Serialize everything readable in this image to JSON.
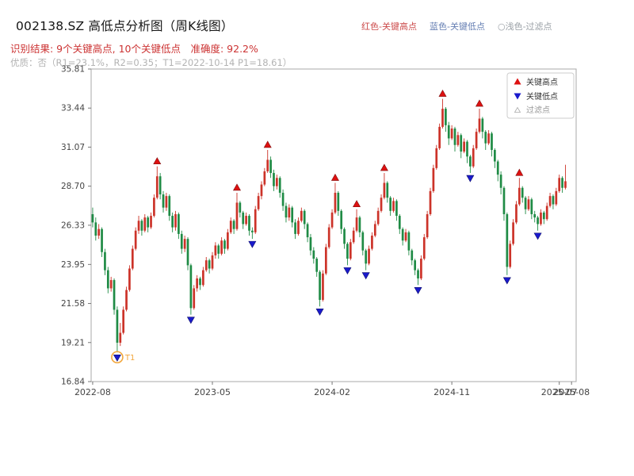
{
  "header": {
    "title": "002138.SZ 高低点分析图（周K线图）",
    "legend_high": "红色-关键高点",
    "legend_low": "蓝色-关键低点",
    "legend_filter": "○浅色-过滤点",
    "result_line": "识别结果: 9个关键高点, 10个关键低点　准确度: 92.2%",
    "quality_line": "优质：否（R1=23.1%，R2=0.35；T1=2022-10-14 P1=18.61）"
  },
  "chart_data": {
    "type": "candlestick",
    "title": "002138.SZ 高低点分析图（周K线图）",
    "xlabel": "",
    "ylabel": "",
    "grid": false,
    "ylim": [
      16.84,
      35.81
    ],
    "y_ticks": [
      16.84,
      19.21,
      21.58,
      23.95,
      26.33,
      28.7,
      31.07,
      33.44,
      35.81
    ],
    "x_ticks": [
      {
        "i": 0,
        "label": "2022-08"
      },
      {
        "i": 39,
        "label": "2023-05"
      },
      {
        "i": 78,
        "label": "2024-02"
      },
      {
        "i": 117,
        "label": "2024-11"
      },
      {
        "i": 152,
        "label": "2025-07"
      },
      {
        "i": 156,
        "label": "2025-08"
      }
    ],
    "slots": 158,
    "stats": {
      "key_high_count": 9,
      "key_low_count": 10,
      "accuracy_pct": 92.2,
      "r1_pct": 23.1,
      "r2": 0.35,
      "t1_date": "2022-10-14",
      "p1": 18.61
    },
    "legend": {
      "high": "关键高点",
      "low": "关键低点",
      "filter": "过滤点"
    },
    "colors": {
      "up": "#cc3329",
      "down": "#1f8b45",
      "marker_high": "#dd1111",
      "marker_high_edge": "#801010",
      "marker_low": "#1a1acc",
      "marker_low_edge": "#10106e",
      "t1": "#f2a63b",
      "frame": "#a8a8a8",
      "tick_text": "#444444",
      "legend_text": "#333333",
      "legend_muted": "#999999"
    },
    "t1": {
      "index": 8,
      "price": 18.61,
      "label": "T1"
    },
    "key_highs": [
      [
        21,
        29.9
      ],
      [
        47,
        28.3
      ],
      [
        57,
        30.9
      ],
      [
        79,
        28.9
      ],
      [
        86,
        27.3
      ],
      [
        95,
        29.5
      ],
      [
        114,
        34.0
      ],
      [
        126,
        33.4
      ],
      [
        139,
        29.2
      ]
    ],
    "key_lows": [
      [
        8,
        18.61
      ],
      [
        32,
        20.9
      ],
      [
        52,
        25.5
      ],
      [
        74,
        21.4
      ],
      [
        83,
        23.9
      ],
      [
        89,
        23.6
      ],
      [
        106,
        22.7
      ],
      [
        123,
        29.5
      ],
      [
        135,
        23.3
      ],
      [
        145,
        26.0
      ]
    ],
    "candles": [
      [
        27.0,
        27.4,
        26.2,
        26.5
      ],
      [
        26.5,
        26.8,
        25.4,
        25.7
      ],
      [
        25.7,
        26.4,
        25.5,
        26.1
      ],
      [
        26.1,
        26.2,
        24.4,
        24.7
      ],
      [
        24.7,
        24.9,
        23.3,
        23.6
      ],
      [
        23.6,
        23.8,
        22.2,
        22.5
      ],
      [
        22.5,
        23.2,
        22.3,
        23.0
      ],
      [
        23.0,
        23.1,
        20.9,
        21.2
      ],
      [
        21.2,
        21.4,
        18.61,
        19.2
      ],
      [
        19.2,
        20.4,
        19.0,
        19.8
      ],
      [
        19.8,
        21.4,
        19.7,
        21.2
      ],
      [
        21.2,
        22.6,
        21.1,
        22.4
      ],
      [
        22.4,
        23.9,
        22.3,
        23.7
      ],
      [
        23.7,
        25.1,
        23.6,
        24.9
      ],
      [
        24.9,
        26.2,
        24.8,
        26.0
      ],
      [
        26.0,
        26.9,
        25.8,
        26.6
      ],
      [
        26.6,
        26.7,
        25.7,
        26.0
      ],
      [
        26.0,
        27.0,
        25.9,
        26.8
      ],
      [
        26.8,
        26.9,
        25.9,
        26.2
      ],
      [
        26.2,
        27.1,
        26.1,
        26.9
      ],
      [
        26.9,
        28.2,
        26.8,
        28.0
      ],
      [
        28.0,
        29.9,
        27.9,
        29.3
      ],
      [
        29.3,
        29.5,
        27.9,
        28.2
      ],
      [
        28.2,
        28.4,
        27.1,
        27.4
      ],
      [
        27.4,
        28.3,
        27.2,
        28.1
      ],
      [
        28.1,
        28.2,
        26.6,
        26.9
      ],
      [
        26.9,
        27.1,
        25.9,
        26.2
      ],
      [
        26.2,
        27.2,
        26.0,
        27.0
      ],
      [
        27.0,
        27.1,
        25.5,
        25.8
      ],
      [
        25.8,
        26.0,
        24.6,
        24.9
      ],
      [
        24.9,
        25.7,
        24.7,
        25.5
      ],
      [
        25.5,
        25.6,
        23.6,
        23.9
      ],
      [
        23.9,
        24.0,
        20.9,
        21.3
      ],
      [
        21.3,
        22.7,
        21.2,
        22.5
      ],
      [
        22.5,
        23.3,
        22.3,
        23.1
      ],
      [
        23.1,
        23.2,
        22.4,
        22.7
      ],
      [
        22.7,
        23.8,
        22.6,
        23.6
      ],
      [
        23.6,
        24.4,
        23.5,
        24.2
      ],
      [
        24.2,
        24.3,
        23.4,
        23.7
      ],
      [
        23.7,
        24.7,
        23.6,
        24.5
      ],
      [
        24.5,
        25.3,
        24.3,
        25.1
      ],
      [
        25.1,
        25.2,
        24.3,
        24.6
      ],
      [
        24.6,
        25.6,
        24.5,
        25.4
      ],
      [
        25.4,
        25.5,
        24.6,
        24.9
      ],
      [
        24.9,
        26.1,
        24.8,
        25.9
      ],
      [
        25.9,
        26.8,
        25.8,
        26.6
      ],
      [
        26.6,
        26.7,
        25.8,
        26.1
      ],
      [
        26.1,
        28.3,
        26.0,
        27.7
      ],
      [
        27.7,
        27.8,
        26.8,
        27.1
      ],
      [
        27.1,
        27.2,
        26.1,
        26.4
      ],
      [
        26.4,
        27.1,
        26.3,
        26.9
      ],
      [
        26.9,
        27.0,
        25.7,
        26.0
      ],
      [
        26.0,
        26.2,
        25.5,
        25.9
      ],
      [
        25.9,
        27.5,
        25.8,
        27.3
      ],
      [
        27.3,
        28.3,
        27.2,
        28.1
      ],
      [
        28.1,
        29.0,
        27.9,
        28.8
      ],
      [
        28.8,
        29.8,
        28.7,
        29.6
      ],
      [
        29.6,
        30.9,
        29.5,
        30.3
      ],
      [
        30.3,
        30.5,
        29.2,
        29.5
      ],
      [
        29.5,
        29.7,
        28.4,
        28.7
      ],
      [
        28.7,
        29.4,
        28.5,
        29.2
      ],
      [
        29.2,
        29.3,
        28.0,
        28.3
      ],
      [
        28.3,
        28.5,
        27.2,
        27.5
      ],
      [
        27.5,
        27.7,
        26.5,
        26.8
      ],
      [
        26.8,
        27.6,
        26.6,
        27.4
      ],
      [
        27.4,
        27.5,
        26.2,
        26.5
      ],
      [
        26.5,
        26.7,
        25.5,
        25.8
      ],
      [
        25.8,
        26.8,
        25.7,
        26.6
      ],
      [
        26.6,
        27.4,
        26.5,
        27.2
      ],
      [
        27.2,
        27.3,
        26.1,
        26.4
      ],
      [
        26.4,
        26.5,
        25.3,
        25.6
      ],
      [
        25.6,
        25.8,
        24.5,
        24.8
      ],
      [
        24.8,
        25.0,
        24.0,
        24.3
      ],
      [
        24.3,
        24.4,
        23.2,
        23.5
      ],
      [
        23.5,
        23.6,
        21.4,
        21.8
      ],
      [
        21.8,
        23.6,
        21.7,
        23.4
      ],
      [
        23.4,
        25.2,
        23.3,
        25.0
      ],
      [
        25.0,
        26.4,
        24.9,
        26.2
      ],
      [
        26.2,
        27.3,
        26.1,
        27.1
      ],
      [
        27.1,
        28.9,
        27.0,
        28.3
      ],
      [
        28.3,
        28.4,
        26.9,
        27.2
      ],
      [
        27.2,
        27.3,
        25.8,
        26.1
      ],
      [
        26.1,
        26.2,
        24.9,
        25.2
      ],
      [
        25.2,
        25.3,
        23.9,
        24.3
      ],
      [
        24.3,
        25.5,
        24.2,
        25.3
      ],
      [
        25.3,
        26.2,
        25.2,
        26.0
      ],
      [
        26.0,
        27.3,
        25.9,
        26.8
      ],
      [
        26.8,
        26.9,
        25.6,
        25.9
      ],
      [
        25.9,
        26.0,
        24.5,
        24.8
      ],
      [
        24.8,
        24.9,
        23.6,
        24.0
      ],
      [
        24.0,
        25.1,
        23.9,
        24.9
      ],
      [
        24.9,
        25.9,
        24.8,
        25.7
      ],
      [
        25.7,
        26.6,
        25.6,
        26.4
      ],
      [
        26.4,
        27.4,
        26.3,
        27.2
      ],
      [
        27.2,
        28.2,
        27.1,
        28.0
      ],
      [
        28.0,
        29.5,
        27.9,
        28.9
      ],
      [
        28.9,
        29.0,
        27.7,
        28.0
      ],
      [
        28.0,
        28.1,
        26.9,
        27.2
      ],
      [
        27.2,
        28.0,
        27.1,
        27.8
      ],
      [
        27.8,
        27.9,
        26.6,
        26.9
      ],
      [
        26.9,
        27.0,
        25.8,
        26.1
      ],
      [
        26.1,
        26.2,
        25.1,
        25.4
      ],
      [
        25.4,
        26.1,
        25.3,
        25.9
      ],
      [
        25.9,
        26.0,
        24.5,
        24.8
      ],
      [
        24.8,
        24.9,
        23.9,
        24.2
      ],
      [
        24.2,
        24.3,
        23.3,
        23.6
      ],
      [
        23.6,
        23.7,
        22.7,
        23.1
      ],
      [
        23.1,
        24.5,
        23.0,
        24.3
      ],
      [
        24.3,
        25.8,
        24.2,
        25.6
      ],
      [
        25.6,
        27.2,
        25.5,
        27.0
      ],
      [
        27.0,
        28.6,
        26.9,
        28.4
      ],
      [
        28.4,
        30.0,
        28.3,
        29.8
      ],
      [
        29.8,
        31.2,
        29.7,
        31.0
      ],
      [
        31.0,
        32.5,
        30.9,
        32.3
      ],
      [
        32.3,
        34.0,
        32.2,
        33.4
      ],
      [
        33.4,
        33.5,
        32.0,
        32.4
      ],
      [
        32.4,
        32.6,
        31.2,
        31.6
      ],
      [
        31.6,
        32.4,
        31.5,
        32.2
      ],
      [
        32.2,
        32.3,
        30.8,
        31.2
      ],
      [
        31.2,
        32.0,
        31.1,
        31.8
      ],
      [
        31.8,
        31.9,
        30.4,
        30.8
      ],
      [
        30.8,
        31.6,
        30.7,
        31.4
      ],
      [
        31.4,
        31.5,
        30.1,
        30.5
      ],
      [
        30.5,
        30.6,
        29.5,
        29.9
      ],
      [
        29.9,
        31.2,
        29.8,
        31.0
      ],
      [
        31.0,
        32.2,
        30.9,
        32.0
      ],
      [
        32.0,
        33.4,
        31.9,
        32.8
      ],
      [
        32.8,
        32.9,
        31.6,
        32.0
      ],
      [
        32.0,
        32.1,
        30.9,
        31.3
      ],
      [
        31.3,
        32.1,
        31.2,
        31.9
      ],
      [
        31.9,
        32.0,
        30.5,
        30.9
      ],
      [
        30.9,
        31.0,
        29.8,
        30.2
      ],
      [
        30.2,
        30.3,
        29.0,
        29.4
      ],
      [
        29.4,
        29.6,
        28.2,
        28.6
      ],
      [
        28.6,
        28.7,
        26.6,
        27.0
      ],
      [
        27.0,
        27.1,
        23.3,
        23.8
      ],
      [
        23.8,
        25.4,
        23.7,
        25.2
      ],
      [
        25.2,
        26.7,
        25.1,
        26.5
      ],
      [
        26.5,
        27.8,
        26.4,
        27.6
      ],
      [
        27.6,
        29.2,
        27.5,
        28.6
      ],
      [
        28.6,
        28.7,
        27.7,
        28.0
      ],
      [
        28.0,
        28.1,
        27.0,
        27.3
      ],
      [
        27.3,
        28.1,
        27.2,
        27.9
      ],
      [
        27.9,
        28.0,
        26.7,
        27.0
      ],
      [
        27.0,
        27.2,
        26.5,
        26.8
      ],
      [
        26.8,
        26.9,
        26.0,
        26.4
      ],
      [
        26.4,
        27.3,
        26.3,
        27.1
      ],
      [
        27.1,
        27.2,
        26.4,
        26.7
      ],
      [
        26.7,
        27.7,
        26.6,
        27.5
      ],
      [
        27.5,
        28.3,
        27.4,
        28.1
      ],
      [
        28.1,
        28.2,
        27.3,
        27.6
      ],
      [
        27.6,
        28.6,
        27.5,
        28.4
      ],
      [
        28.4,
        29.4,
        28.3,
        29.2
      ],
      [
        29.2,
        29.3,
        28.3,
        28.6
      ],
      [
        28.6,
        30.0,
        28.5,
        29.0
      ]
    ]
  }
}
